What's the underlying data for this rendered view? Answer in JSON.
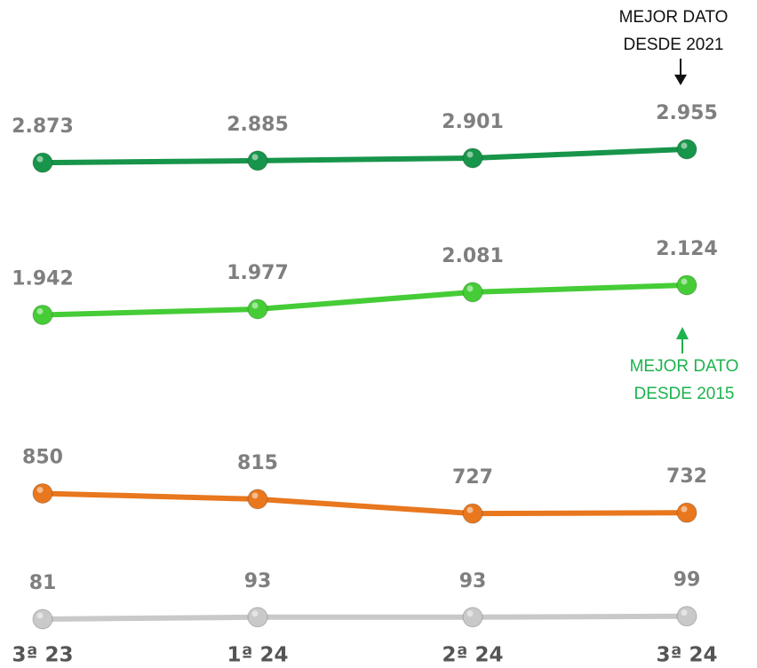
{
  "chart_data": {
    "type": "line",
    "categories": [
      "3ª 23",
      "1ª 24",
      "2ª 24",
      "3ª 24"
    ],
    "series": [
      {
        "color": "#17954a",
        "values": [
          2873,
          2885,
          2901,
          2955
        ],
        "value_labels": [
          "2.873",
          "2.885",
          "2.901",
          "2.955"
        ]
      },
      {
        "color": "#45cc36",
        "values": [
          1942,
          1977,
          2081,
          2124
        ],
        "value_labels": [
          "1.942",
          "1.977",
          "2.081",
          "2.124"
        ]
      },
      {
        "color": "#e8771e",
        "values": [
          850,
          815,
          727,
          732
        ]
      },
      {
        "color": "#c9c9c9",
        "values": [
          81,
          93,
          93,
          99
        ]
      }
    ],
    "annotations": [
      {
        "lines": [
          "MEJOR DATO",
          "DESDE 2021"
        ],
        "color": "#111111"
      },
      {
        "lines": [
          "MEJOR DATO",
          "DESDE 2015"
        ],
        "color": "#1db34d"
      }
    ]
  }
}
